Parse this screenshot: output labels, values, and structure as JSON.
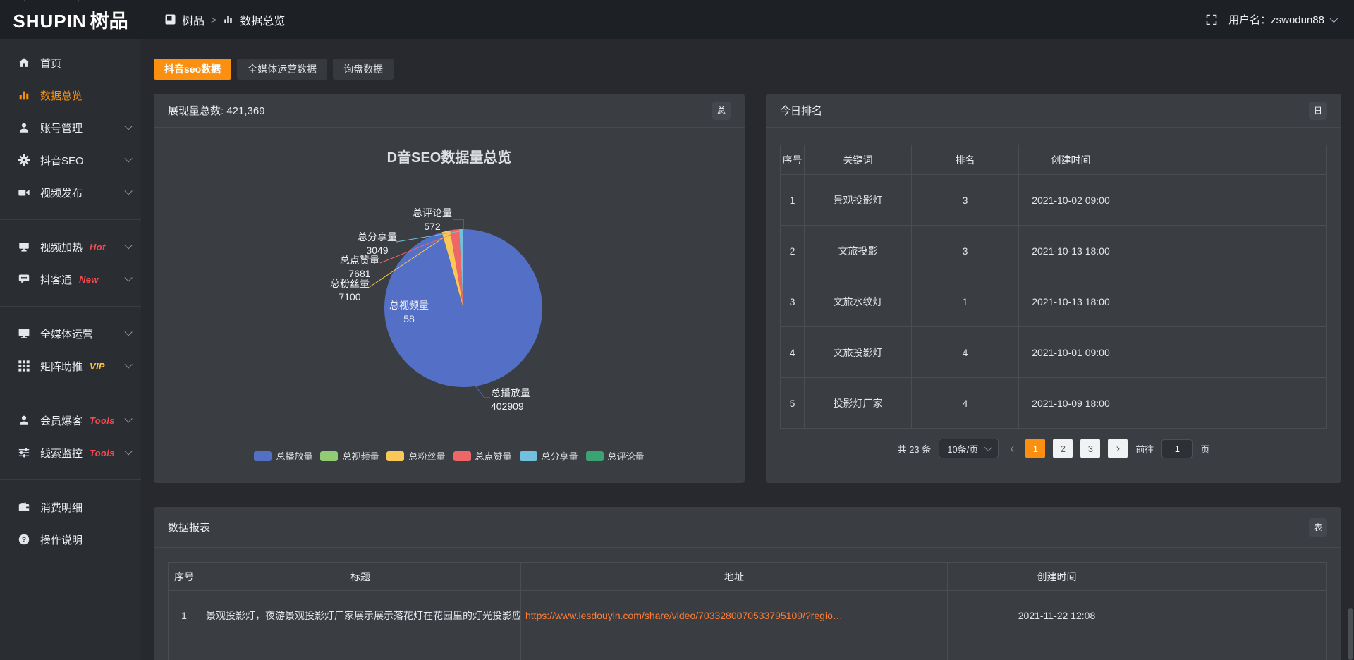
{
  "header": {
    "logo": {
      "en": "SHUPIN",
      "cn": "树品"
    },
    "breadcrumb": {
      "root": "树品",
      "sep": ">",
      "current": "数据总览"
    },
    "username": "用户名：zswodun88"
  },
  "sidebar": {
    "items": [
      {
        "label": "首页"
      },
      {
        "label": "数据总览"
      },
      {
        "label": "账号管理"
      },
      {
        "label": "抖音SEO"
      },
      {
        "label": "视频发布"
      },
      {
        "label": "视频加热",
        "badge": "Hot"
      },
      {
        "label": "抖客通",
        "badge": "New"
      },
      {
        "label": "全媒体运营"
      },
      {
        "label": "矩阵助推",
        "badge": "VIP"
      },
      {
        "label": "会员爆客",
        "badge": "Tools"
      },
      {
        "label": "线索监控",
        "badge": "Tools"
      },
      {
        "label": "消费明细"
      },
      {
        "label": "操作说明"
      }
    ]
  },
  "tabs": [
    {
      "label": "抖音seo数据"
    },
    {
      "label": "全媒体运营数据"
    },
    {
      "label": "询盘数据"
    }
  ],
  "overview_card": {
    "summary": "展现量总数: 421,369",
    "corner_badge": "总"
  },
  "chart_data": {
    "type": "pie",
    "title": "D音SEO数据量总览",
    "total": 421369,
    "legend_position": "bottom",
    "start_angle": 90,
    "clockwise": true,
    "series": [
      {
        "name": "总播放量",
        "value": 402909,
        "color": "#5470c6"
      },
      {
        "name": "总视频量",
        "value": 58,
        "color": "#91cc75"
      },
      {
        "name": "总粉丝量",
        "value": 7100,
        "color": "#fac858"
      },
      {
        "name": "总点赞量",
        "value": 7681,
        "color": "#ee6666"
      },
      {
        "name": "总分享量",
        "value": 3049,
        "color": "#73c0de"
      },
      {
        "name": "总评论量",
        "value": 572,
        "color": "#3ba272"
      }
    ]
  },
  "ranking_card": {
    "title": "今日排名",
    "corner_badge": "日",
    "columns": [
      "序号",
      "关键词",
      "排名",
      "创建时间"
    ],
    "rows": [
      {
        "index": "1",
        "keyword": "景观投影灯",
        "rank": "3",
        "created": "2021-10-02 09:00"
      },
      {
        "index": "2",
        "keyword": "文旅投影",
        "rank": "3",
        "created": "2021-10-13 18:00"
      },
      {
        "index": "3",
        "keyword": "文旅水纹灯",
        "rank": "1",
        "created": "2021-10-13 18:00"
      },
      {
        "index": "4",
        "keyword": "文旅投影灯",
        "rank": "4",
        "created": "2021-10-01 09:00"
      },
      {
        "index": "5",
        "keyword": "投影灯厂家",
        "rank": "4",
        "created": "2021-10-09 18:00"
      }
    ],
    "pagination": {
      "total": "共 23 条",
      "page_size": "10条/页",
      "prev": "‹",
      "pages": [
        "1",
        "2",
        "3"
      ],
      "active": "1",
      "next": "›",
      "goto_label": "前往",
      "goto_value": "1",
      "goto_unit": "页"
    }
  },
  "report_card": {
    "title": "数据报表",
    "corner_badge": "表",
    "columns": [
      "序号",
      "标题",
      "地址",
      "创建时间"
    ],
    "rows": [
      {
        "index": "1",
        "title": "景观投影灯，夜游景观投影灯厂家展示展示落花灯在花园里的灯光投影应用效果 #",
        "url": "https://www.iesdouyin.com/share/video/7033280070533795109/?regio…",
        "created": "2021-11-22 12:08"
      }
    ]
  },
  "colors": {
    "accent": "#fb8f10",
    "link": "#ff7d35",
    "hot_badge": "#f4494d",
    "vip_badge": "#ffc53d"
  }
}
